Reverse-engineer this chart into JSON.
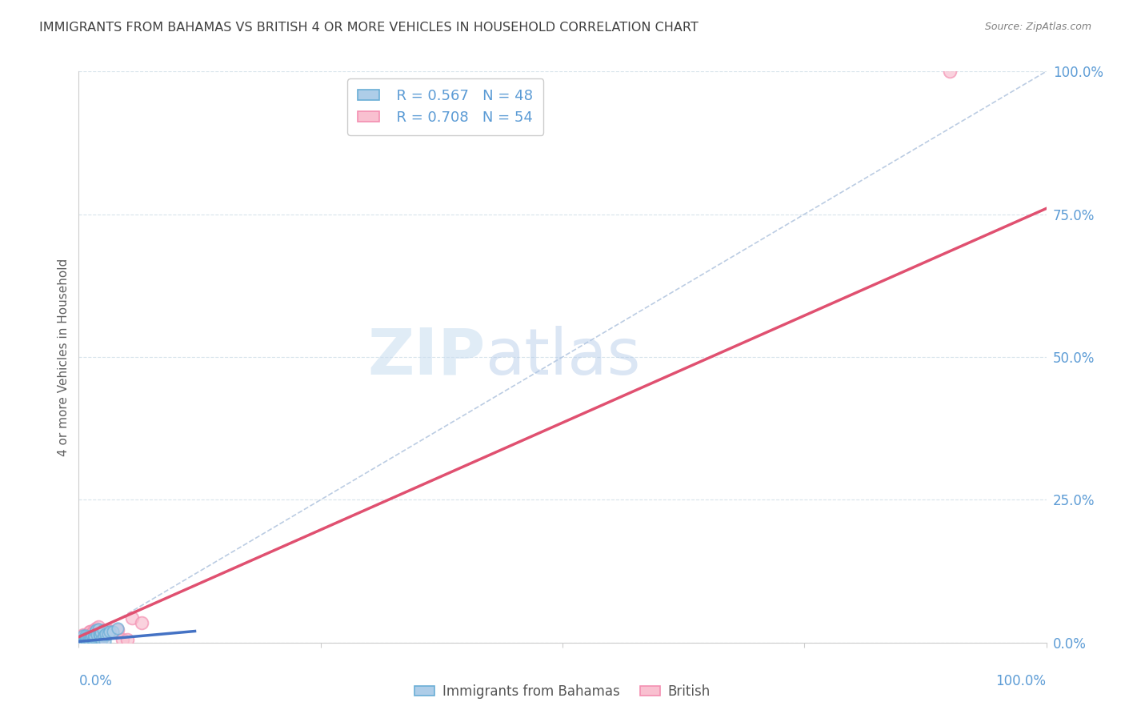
{
  "title": "IMMIGRANTS FROM BAHAMAS VS BRITISH 4 OR MORE VEHICLES IN HOUSEHOLD CORRELATION CHART",
  "source": "Source: ZipAtlas.com",
  "ylabel": "4 or more Vehicles in Household",
  "ytick_labels": [
    "0.0%",
    "25.0%",
    "50.0%",
    "75.0%",
    "100.0%"
  ],
  "ytick_values": [
    0,
    0.25,
    0.5,
    0.75,
    1.0
  ],
  "watermark_zip": "ZIP",
  "watermark_atlas": "atlas",
  "blue_color": "#6aaed6",
  "pink_color": "#f48fb1",
  "blue_fill": "#aecde8",
  "pink_fill": "#f9c0d0",
  "blue_line_color": "#4472c4",
  "pink_line_color": "#e05070",
  "diagonal_color": "#b0c4de",
  "grid_color": "#d8e4ec",
  "title_color": "#404040",
  "source_color": "#808080",
  "axis_label_color": "#5b9bd5",
  "ylabel_color": "#606060",
  "blue_R": "0.567",
  "blue_N": "48",
  "pink_R": "0.708",
  "pink_N": "54",
  "blue_label": "Immigrants from Bahamas",
  "pink_label": "British",
  "xlim": [
    0,
    1.0
  ],
  "ylim": [
    0,
    1.0
  ],
  "blue_scatter_x": [
    0.0005,
    0.001,
    0.001,
    0.001,
    0.0015,
    0.002,
    0.002,
    0.002,
    0.002,
    0.003,
    0.003,
    0.003,
    0.004,
    0.004,
    0.005,
    0.005,
    0.006,
    0.006,
    0.007,
    0.007,
    0.008,
    0.008,
    0.009,
    0.01,
    0.01,
    0.011,
    0.012,
    0.013,
    0.014,
    0.015,
    0.015,
    0.016,
    0.017,
    0.018,
    0.019,
    0.02,
    0.021,
    0.022,
    0.023,
    0.024,
    0.025,
    0.026,
    0.027,
    0.028,
    0.03,
    0.032,
    0.035,
    0.04
  ],
  "blue_scatter_y": [
    0.001,
    0.001,
    0.002,
    0.003,
    0.001,
    0.002,
    0.001,
    0.003,
    0.001,
    0.002,
    0.003,
    0.004,
    0.002,
    0.003,
    0.002,
    0.012,
    0.007,
    0.003,
    0.008,
    0.012,
    0.01,
    0.006,
    0.003,
    0.004,
    0.009,
    0.006,
    0.01,
    0.008,
    0.012,
    0.005,
    0.01,
    0.012,
    0.02,
    0.022,
    0.014,
    0.023,
    0.015,
    0.013,
    0.018,
    0.005,
    0.022,
    0.012,
    0.003,
    0.015,
    0.015,
    0.02,
    0.02,
    0.025
  ],
  "pink_scatter_x": [
    0.0005,
    0.001,
    0.001,
    0.0015,
    0.002,
    0.002,
    0.003,
    0.003,
    0.003,
    0.004,
    0.004,
    0.005,
    0.005,
    0.005,
    0.005,
    0.006,
    0.006,
    0.007,
    0.007,
    0.007,
    0.008,
    0.008,
    0.009,
    0.01,
    0.01,
    0.011,
    0.011,
    0.012,
    0.012,
    0.013,
    0.013,
    0.014,
    0.014,
    0.015,
    0.015,
    0.016,
    0.016,
    0.017,
    0.018,
    0.019,
    0.02,
    0.022,
    0.023,
    0.024,
    0.025,
    0.026,
    0.03,
    0.032,
    0.04,
    0.045,
    0.05,
    0.055,
    0.065,
    0.9
  ],
  "pink_scatter_y": [
    0.001,
    0.003,
    0.002,
    0.001,
    0.001,
    0.003,
    0.002,
    0.004,
    0.01,
    0.005,
    0.007,
    0.003,
    0.005,
    0.012,
    0.014,
    0.007,
    0.01,
    0.008,
    0.01,
    0.013,
    0.009,
    0.012,
    0.007,
    0.01,
    0.013,
    0.011,
    0.02,
    0.01,
    0.02,
    0.01,
    0.015,
    0.01,
    0.015,
    0.013,
    0.02,
    0.015,
    0.022,
    0.013,
    0.025,
    0.023,
    0.028,
    0.01,
    0.013,
    0.013,
    0.015,
    0.012,
    0.022,
    0.02,
    0.022,
    0.005,
    0.005,
    0.043,
    0.035,
    1.0
  ],
  "blue_line_x": [
    0.0,
    0.12
  ],
  "blue_line_y": [
    0.002,
    0.02
  ],
  "pink_line_x": [
    0.0,
    1.0
  ],
  "pink_line_y": [
    0.01,
    0.76
  ]
}
